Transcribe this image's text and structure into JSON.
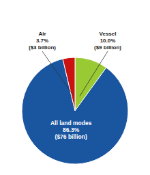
{
  "chart_data": {
    "type": "pie",
    "categories": [
      "Vessel",
      "All land modes",
      "Air"
    ],
    "values": [
      10.0,
      86.3,
      3.7
    ],
    "value_labels": [
      "10.0%",
      "86.3%",
      "3.7%"
    ],
    "amount_labels": [
      "($9 billion)",
      "($76 billion)",
      "($3 billion)"
    ],
    "colors": [
      "#99c933",
      "#1a55a0",
      "#cc1111"
    ]
  }
}
